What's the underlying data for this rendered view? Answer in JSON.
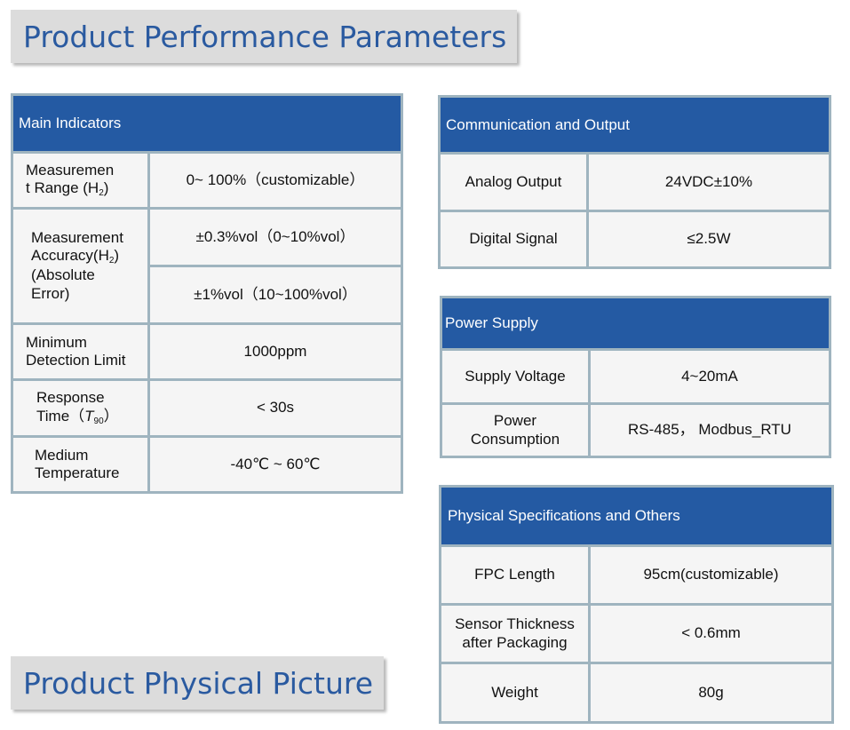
{
  "banners": {
    "performance": "Product Performance Parameters",
    "picture": "Product Physical Picture"
  },
  "main": {
    "header": "Main Indicators",
    "range_label_a": "Measuremen",
    "range_label_b": "t Range (H",
    "range_label_sub": "2",
    "range_label_c": ")",
    "range_value": "0~ 100%（customizable）",
    "accuracy_label_a": "Measurement",
    "accuracy_label_b": "Accuracy(H",
    "accuracy_label_sub": "2",
    "accuracy_label_c": ")",
    "accuracy_label_d": "(Absolute",
    "accuracy_label_e": "Error)",
    "accuracy_value_1": "±0.3%vol（0~10%vol）",
    "accuracy_value_2": "±1%vol（10~100%vol）",
    "detection_label_a": "Minimum",
    "detection_label_b": "Detection Limit",
    "detection_value": "1000ppm",
    "response_label_a": "Response",
    "response_label_b": "Time（",
    "response_label_t": "T",
    "response_label_sub": "90",
    "response_label_c": "）",
    "response_value": "< 30s",
    "medium_label_a": "Medium",
    "medium_label_b": "Temperature",
    "medium_value": "-40℃ ~ 60℃"
  },
  "comm": {
    "header": "Communication and Output",
    "rows": [
      {
        "label": "Analog Output",
        "value": "24VDC±10%"
      },
      {
        "label": "Digital Signal",
        "value": "≤2.5W"
      }
    ]
  },
  "power": {
    "header": "Power Supply",
    "voltage_label": "Supply Voltage",
    "voltage_value": "4~20mA",
    "consumption_label_a": "Power",
    "consumption_label_b": "Consumption",
    "consumption_value": "RS-485， Modbus_RTU"
  },
  "physical": {
    "header": "Physical Specifications and Others",
    "fpc_label": "FPC Length",
    "fpc_value": "95cm(customizable)",
    "thickness_label_a": "Sensor Thickness",
    "thickness_label_b": "after Packaging",
    "thickness_value": "< 0.6mm",
    "weight_label": "Weight",
    "weight_value": "80g"
  },
  "colors": {
    "header_blue": "#245aa3",
    "banner_text": "#2a5aa0",
    "border": "#9fb4bf",
    "cell_bg": "#f5f5f5"
  }
}
